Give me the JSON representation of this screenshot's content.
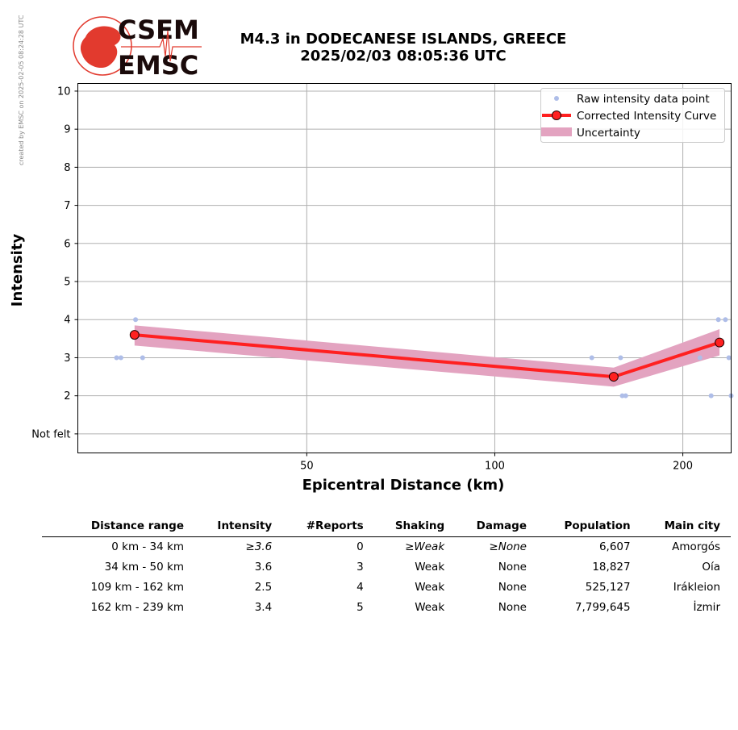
{
  "credit": "created by EMSC on 2025-02-05 08:24:28 UTC",
  "logo": {
    "top": "CSEM",
    "bottom": "EMSC"
  },
  "header": {
    "line1": "M4.3 in DODECANESE ISLANDS, GREECE",
    "line2": "2025/02/03 08:05:36 UTC"
  },
  "chart_data": {
    "type": "line",
    "xlabel": "Epicentral Distance (km)",
    "ylabel": "Intensity",
    "x_scale": "log",
    "xlim": [
      21.5,
      239
    ],
    "ylim": [
      0.5,
      10.2
    ],
    "x_ticks": [
      50,
      100,
      200
    ],
    "y_ticks": [
      1,
      2,
      3,
      4,
      5,
      6,
      7,
      8,
      9,
      10
    ],
    "y_tick_labels": [
      "Not felt",
      "2",
      "3",
      "4",
      "5",
      "6",
      "7",
      "8",
      "9",
      "10"
    ],
    "grid": true,
    "legend_position": "top-right",
    "legend": [
      "Raw intensity data point",
      "Corrected Intensity Curve",
      "Uncertainty"
    ],
    "colors": {
      "raw": "#aebde8",
      "curve": "#ff2020",
      "marker_fill": "#ff2020",
      "marker_edge": "#220000",
      "band": "#e3a3c0"
    },
    "raw_points": [
      {
        "x": 24.8,
        "y": 3
      },
      {
        "x": 25.2,
        "y": 3
      },
      {
        "x": 26.6,
        "y": 4
      },
      {
        "x": 27.3,
        "y": 3
      },
      {
        "x": 143,
        "y": 3
      },
      {
        "x": 159,
        "y": 3
      },
      {
        "x": 160,
        "y": 2
      },
      {
        "x": 162,
        "y": 2
      },
      {
        "x": 213,
        "y": 3
      },
      {
        "x": 222,
        "y": 2
      },
      {
        "x": 228,
        "y": 4
      },
      {
        "x": 234,
        "y": 4
      },
      {
        "x": 237,
        "y": 3
      },
      {
        "x": 239,
        "y": 2
      }
    ],
    "series": [
      {
        "name": "Corrected Intensity Curve",
        "x": [
          26.5,
          155,
          229
        ],
        "y": [
          3.6,
          2.5,
          3.4
        ]
      }
    ],
    "uncertainty": {
      "x": [
        26.5,
        155,
        229
      ],
      "lower": [
        3.32,
        2.24,
        3.06
      ],
      "upper": [
        3.85,
        2.74,
        3.75
      ]
    }
  },
  "table": {
    "headers": [
      "Distance range",
      "Intensity",
      "#Reports",
      "Shaking",
      "Damage",
      "Population",
      "Main city"
    ],
    "rows": [
      {
        "range": "0 km -   34 km",
        "intensity": "≥3.6",
        "reports": "0",
        "shaking": "≥Weak",
        "damage": "≥None",
        "population": "6,607",
        "city": "Amorgós"
      },
      {
        "range": "34 km -   50 km",
        "intensity": "3.6",
        "reports": "3",
        "shaking": "Weak",
        "damage": "None",
        "population": "18,827",
        "city": "Oía"
      },
      {
        "range": "109 km -  162 km",
        "intensity": "2.5",
        "reports": "4",
        "shaking": "Weak",
        "damage": "None",
        "population": "525,127",
        "city": "Irákleion"
      },
      {
        "range": "162 km -  239 km",
        "intensity": "3.4",
        "reports": "5",
        "shaking": "Weak",
        "damage": "None",
        "population": "7,799,645",
        "city": "İzmir"
      }
    ]
  }
}
